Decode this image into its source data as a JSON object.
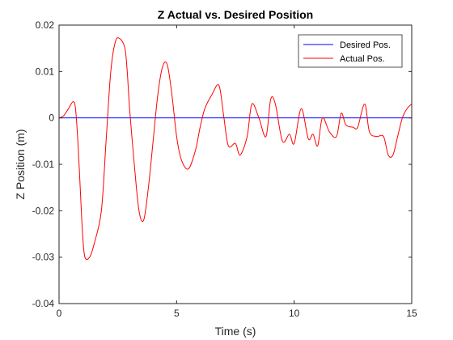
{
  "chart_data": {
    "type": "line",
    "title": "Z Actual vs. Desired Position",
    "xlabel": "Time (s)",
    "ylabel": "Z Position (m)",
    "xlim": [
      0,
      15
    ],
    "ylim": [
      -0.04,
      0.02
    ],
    "xticks": [
      0,
      5,
      10,
      15
    ],
    "yticks": [
      -0.04,
      -0.03,
      -0.02,
      -0.01,
      0,
      0.01,
      0.02
    ],
    "xtick_labels": [
      "0",
      "5",
      "10",
      "15"
    ],
    "ytick_labels": [
      "-0.04",
      "-0.03",
      "-0.02",
      "-0.01",
      "0",
      "0.01",
      "0.02"
    ],
    "grid": false,
    "legend_position": "top-right",
    "series": [
      {
        "name": "Desired Pos.",
        "color": "#0000ff",
        "x": [
          0,
          15
        ],
        "y": [
          0,
          0
        ]
      },
      {
        "name": "Actual Pos.",
        "color": "#ff0000",
        "x": [
          0,
          0.2,
          0.4,
          0.6,
          0.7,
          0.8,
          0.9,
          1.0,
          1.1,
          1.3,
          1.5,
          1.8,
          2.0,
          2.2,
          2.4,
          2.6,
          2.8,
          2.9,
          3.0,
          3.2,
          3.4,
          3.6,
          3.8,
          4.0,
          4.2,
          4.4,
          4.6,
          4.8,
          5.0,
          5.2,
          5.5,
          5.8,
          6.0,
          6.2,
          6.5,
          6.8,
          7.0,
          7.2,
          7.5,
          7.7,
          8.0,
          8.2,
          8.5,
          8.8,
          9.0,
          9.2,
          9.5,
          9.8,
          10.0,
          10.3,
          10.6,
          10.8,
          11.0,
          11.2,
          11.5,
          11.8,
          12.0,
          12.2,
          12.5,
          12.7,
          13.0,
          13.2,
          13.5,
          13.8,
          14.0,
          14.2,
          14.4,
          14.6,
          14.8,
          15.0
        ],
        "y": [
          0,
          0.0005,
          0.002,
          0.0035,
          0.002,
          -0.005,
          -0.015,
          -0.025,
          -0.03,
          -0.03,
          -0.027,
          -0.02,
          -0.005,
          0.01,
          0.0165,
          0.017,
          0.015,
          0.01,
          0.002,
          -0.01,
          -0.02,
          -0.022,
          -0.015,
          -0.005,
          0.005,
          0.011,
          0.0115,
          0.005,
          -0.004,
          -0.009,
          -0.011,
          -0.007,
          -0.002,
          0.002,
          0.005,
          0.007,
          0.0005,
          -0.006,
          -0.0055,
          -0.008,
          -0.004,
          0.003,
          0.0,
          -0.004,
          0.004,
          0.003,
          -0.005,
          -0.0035,
          -0.0055,
          0.002,
          -0.0045,
          -0.0035,
          -0.006,
          0.0,
          -0.003,
          -0.004,
          0.001,
          -0.0015,
          -0.002,
          -0.002,
          0.003,
          -0.003,
          -0.004,
          -0.004,
          -0.008,
          -0.008,
          -0.004,
          0.0,
          0.002,
          0.003
        ]
      }
    ]
  }
}
